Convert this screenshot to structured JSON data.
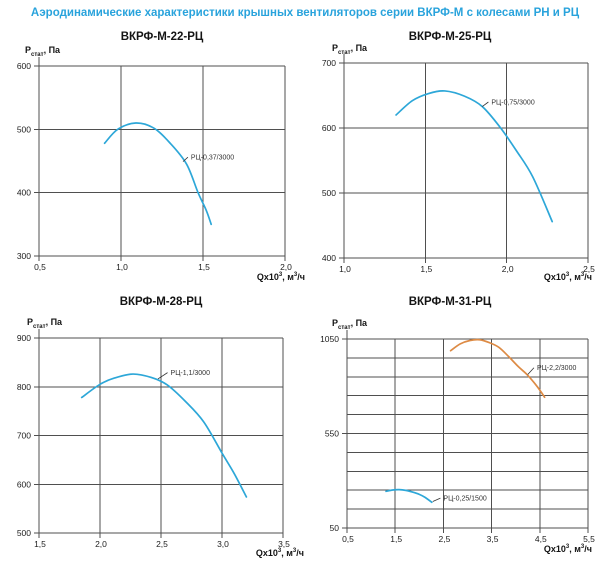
{
  "header": {
    "title": "Аэродинамические характеристики крышных вентиляторов серии ВКРФ-М с колесами РН и РЦ",
    "accent_color": "#29a3dc"
  },
  "colors": {
    "grid": "#4f4f4f",
    "tick_text": "#1c1c1c",
    "curve_cyan": "#2da7d8",
    "curve_orange": "#dd8b45",
    "curve_label_text": "#333333"
  },
  "axis_labels": {
    "pressure": {
      "base": "P",
      "sub": "стат",
      "unit": ", Па"
    },
    "flow": {
      "base": "Qx10",
      "sup": "3",
      "mid": ", м",
      "sup2": "3",
      "end": "/ч"
    }
  },
  "chart_data": [
    {
      "type": "line",
      "title": "ВКРФ-М-22-РЦ",
      "xlabel": "Qx10³, м³/ч",
      "ylabel": "Pстат, Па",
      "xlim": [
        0.5,
        2.0
      ],
      "ylim": [
        300,
        600
      ],
      "x_grid": [
        0.5,
        1.0,
        1.5,
        2.0
      ],
      "y_grid": [
        300,
        400,
        500,
        600
      ],
      "x_ticks": {
        "values": [
          0.5,
          1.0,
          1.5,
          2.0
        ],
        "labels": [
          "0,5",
          "1,0",
          "1,5",
          "2,0"
        ]
      },
      "y_ticks": {
        "values": [
          300,
          400,
          500,
          600
        ],
        "labels": [
          "300",
          "400",
          "500",
          "600"
        ]
      },
      "series": [
        {
          "name": "РЦ-0,37/3000",
          "color": "#2da7d8",
          "points": [
            [
              0.9,
              478
            ],
            [
              0.98,
              500
            ],
            [
              1.09,
              510
            ],
            [
              1.2,
              502
            ],
            [
              1.3,
              478
            ],
            [
              1.4,
              445
            ],
            [
              1.47,
              400
            ],
            [
              1.52,
              372
            ],
            [
              1.55,
              350
            ]
          ],
          "label_pos": [
            1.42,
            456
          ],
          "label_anchor": [
            1.378,
            449
          ]
        }
      ]
    },
    {
      "type": "line",
      "title": "ВКРФ-М-25-РЦ",
      "xlabel": "Qx10³, м³/ч",
      "ylabel": "Pстат, Па",
      "xlim": [
        1.0,
        2.5
      ],
      "ylim": [
        400,
        700
      ],
      "x_grid": [
        1.0,
        1.5,
        2.0,
        2.5
      ],
      "y_grid": [
        400,
        500,
        600,
        700
      ],
      "x_ticks": {
        "values": [
          1.0,
          1.5,
          2.0,
          2.5
        ],
        "labels": [
          "1,0",
          "1,5",
          "2,0",
          "2,5"
        ]
      },
      "y_ticks": {
        "values": [
          400,
          500,
          600,
          700
        ],
        "labels": [
          "400",
          "500",
          "600",
          "700"
        ]
      },
      "series": [
        {
          "name": "РЦ-0,75/3000",
          "color": "#2da7d8",
          "points": [
            [
              1.32,
              620
            ],
            [
              1.42,
              642
            ],
            [
              1.52,
              653
            ],
            [
              1.62,
              657
            ],
            [
              1.74,
              649
            ],
            [
              1.85,
              633
            ],
            [
              1.96,
              601
            ],
            [
              2.06,
              565
            ],
            [
              2.16,
              525
            ],
            [
              2.28,
              456
            ]
          ],
          "label_pos": [
            1.9,
            640
          ],
          "label_anchor": [
            1.85,
            633
          ]
        }
      ]
    },
    {
      "type": "line",
      "title": "ВКРФ-М-28-РЦ",
      "xlabel": "Qx10³, м³/ч",
      "ylabel": "Pстат, Па",
      "xlim": [
        1.5,
        3.5
      ],
      "ylim": [
        500,
        900
      ],
      "x_grid": [
        1.5,
        2.0,
        2.5,
        3.0,
        3.5
      ],
      "y_grid": [
        500,
        600,
        700,
        800,
        900
      ],
      "x_ticks": {
        "values": [
          1.5,
          2.0,
          2.5,
          3.0,
          3.5
        ],
        "labels": [
          "1,5",
          "2,0",
          "2,5",
          "3,0",
          "3,5"
        ]
      },
      "y_ticks": {
        "values": [
          500,
          600,
          700,
          800,
          900
        ],
        "labels": [
          "500",
          "600",
          "700",
          "800",
          "900"
        ]
      },
      "series": [
        {
          "name": "РЦ-1,1/3000",
          "color": "#2da7d8",
          "points": [
            [
              1.85,
              778
            ],
            [
              2.0,
              805
            ],
            [
              2.12,
              818
            ],
            [
              2.27,
              826
            ],
            [
              2.42,
              819
            ],
            [
              2.55,
              804
            ],
            [
              2.7,
              770
            ],
            [
              2.85,
              728
            ],
            [
              3.0,
              664
            ],
            [
              3.1,
              622
            ],
            [
              3.2,
              574
            ]
          ],
          "label_pos": [
            2.57,
            829
          ],
          "label_anchor": [
            2.475,
            816
          ]
        }
      ]
    },
    {
      "type": "line",
      "title": "ВКРФ-М-31-РЦ",
      "xlabel": "Qx10³, м³/ч",
      "ylabel": "Pстат, Па",
      "xlim": [
        0.5,
        5.5
      ],
      "ylim": [
        50,
        1050
      ],
      "x_grid": [
        0.5,
        1.5,
        2.5,
        3.5,
        4.5,
        5.5
      ],
      "y_grid": [
        50,
        150,
        250,
        350,
        450,
        550,
        650,
        750,
        850,
        950,
        1050
      ],
      "x_ticks": {
        "values": [
          0.5,
          1.5,
          2.5,
          3.5,
          4.5,
          5.5
        ],
        "labels": [
          "0,5",
          "1,5",
          "2,5",
          "3,5",
          "4,5",
          "5,5"
        ]
      },
      "y_ticks": {
        "values": [
          50,
          550,
          1050
        ],
        "labels": [
          "50",
          "550",
          "1050"
        ]
      },
      "series": [
        {
          "name": "РЦ-2,2/3000",
          "color": "#dd8b45",
          "points": [
            [
              2.65,
              988
            ],
            [
              2.85,
              1024
            ],
            [
              3.05,
              1042
            ],
            [
              3.25,
              1046
            ],
            [
              3.45,
              1031
            ],
            [
              3.65,
              1006
            ],
            [
              3.85,
              958
            ],
            [
              4.05,
              905
            ],
            [
              4.25,
              858
            ],
            [
              4.45,
              797
            ],
            [
              4.6,
              742
            ]
          ],
          "label_pos": [
            4.42,
            898
          ],
          "label_anchor": [
            4.25,
            862
          ]
        },
        {
          "name": "РЦ-0,25/1500",
          "color": "#2da7d8",
          "points": [
            [
              1.31,
              244
            ],
            [
              1.45,
              251
            ],
            [
              1.58,
              253
            ],
            [
              1.72,
              249
            ],
            [
              1.86,
              240
            ],
            [
              2.0,
              228
            ],
            [
              2.12,
              212
            ],
            [
              2.26,
              186
            ]
          ],
          "label_pos": [
            2.48,
            208
          ],
          "label_anchor": [
            2.28,
            190
          ]
        }
      ]
    }
  ]
}
